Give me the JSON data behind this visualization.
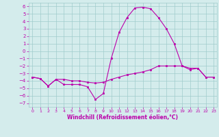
{
  "xlabel": "Windchill (Refroidissement éolien,°C)",
  "ylabel": "",
  "xlim": [
    -0.5,
    23.4
  ],
  "ylim": [
    -7.5,
    6.5
  ],
  "yticks": [
    -7,
    -6,
    -5,
    -4,
    -3,
    -2,
    -1,
    0,
    1,
    2,
    3,
    4,
    5,
    6
  ],
  "xticks": [
    0,
    1,
    2,
    3,
    4,
    5,
    6,
    7,
    8,
    9,
    10,
    11,
    12,
    13,
    14,
    15,
    16,
    17,
    18,
    19,
    20,
    21,
    22,
    23
  ],
  "line_color": "#bb00aa",
  "bg_color": "#d4ecec",
  "grid_color": "#a0cccc",
  "line1_x": [
    0,
    1,
    2,
    3,
    4,
    5,
    6,
    7,
    8,
    9,
    10,
    11,
    12,
    13,
    14,
    15,
    16,
    17,
    18,
    19,
    20,
    21,
    22,
    23
  ],
  "line1_y": [
    -3.5,
    -3.7,
    -4.7,
    -3.8,
    -4.5,
    -4.5,
    -4.5,
    -4.8,
    -6.5,
    -5.7,
    -1.0,
    2.5,
    4.5,
    5.8,
    5.9,
    5.7,
    4.5,
    3.0,
    1.0,
    -2.0,
    -2.5,
    -2.3,
    -3.5,
    -3.5
  ],
  "line2_x": [
    0,
    1,
    2,
    3,
    4,
    5,
    6,
    7,
    8,
    9,
    10,
    11,
    12,
    13,
    14,
    15,
    16,
    17,
    18,
    19,
    20,
    21,
    22,
    23
  ],
  "line2_y": [
    -3.5,
    -3.7,
    -4.7,
    -3.8,
    -3.8,
    -4.0,
    -4.0,
    -4.2,
    -4.3,
    -4.2,
    -3.8,
    -3.5,
    -3.2,
    -3.0,
    -2.8,
    -2.5,
    -2.0,
    -2.0,
    -2.0,
    -2.0,
    -2.3,
    -2.3,
    -3.5,
    -3.5
  ],
  "marker": "s",
  "markersize": 1.8,
  "linewidth": 0.8
}
